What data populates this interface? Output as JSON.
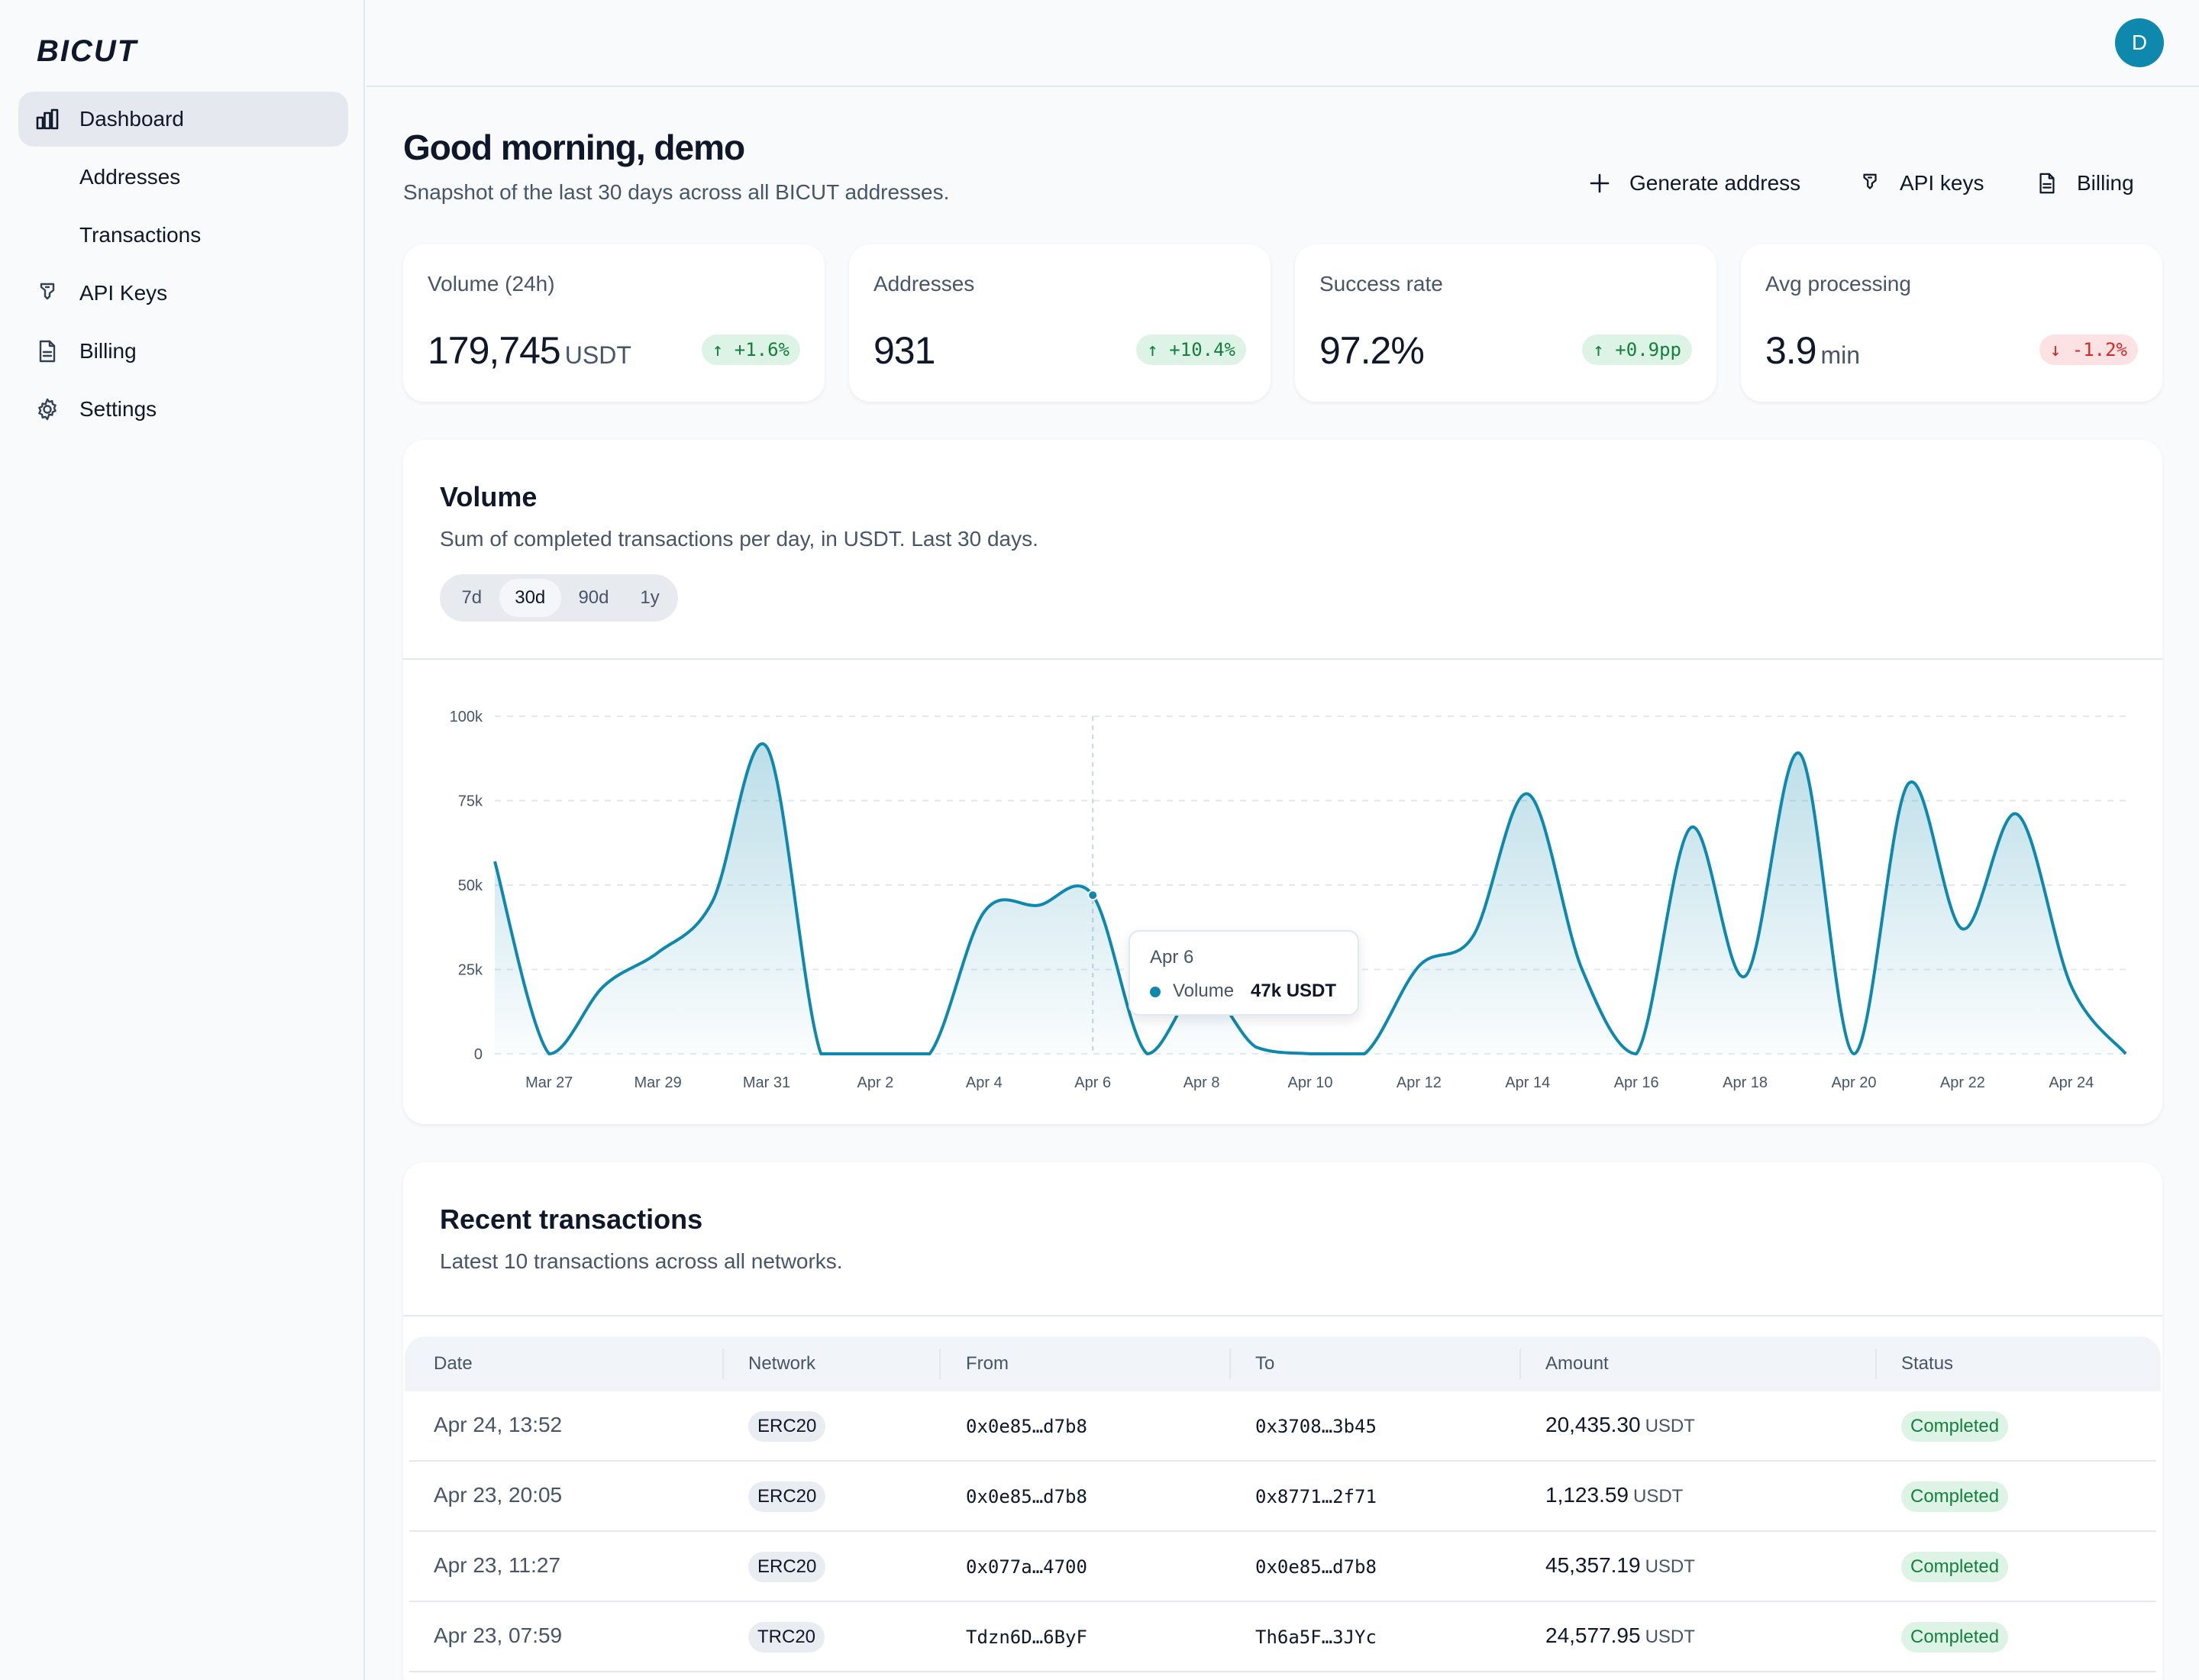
{
  "brand": {
    "logo_text": "BICUT"
  },
  "sidebar": {
    "items": [
      {
        "label": "Dashboard",
        "icon": "chart-bar-icon",
        "active": true
      },
      {
        "label": "Addresses",
        "sub": true
      },
      {
        "label": "Transactions",
        "sub": true
      },
      {
        "label": "API Keys",
        "icon": "key-icon"
      },
      {
        "label": "Billing",
        "icon": "document-icon"
      },
      {
        "label": "Settings",
        "icon": "gear-icon"
      }
    ]
  },
  "header": {
    "avatar_initial": "D"
  },
  "page": {
    "greeting": "Good morning, demo",
    "subtitle": "Snapshot of the last 30 days across all BICUT addresses."
  },
  "actions": {
    "generate": "Generate address",
    "api_keys": "API keys",
    "billing": "Billing"
  },
  "stats": [
    {
      "label": "Volume (24h)",
      "value": "179,745",
      "unit": "USDT",
      "delta": "↑ +1.6%",
      "trend": "up"
    },
    {
      "label": "Addresses",
      "value": "931",
      "unit": "",
      "delta": "↑ +10.4%",
      "trend": "up"
    },
    {
      "label": "Success rate",
      "value": "97.2%",
      "unit": "",
      "delta": "↑ +0.9pp",
      "trend": "up"
    },
    {
      "label": "Avg processing",
      "value": "3.9",
      "unit": "min",
      "delta": "↓ -1.2%",
      "trend": "down"
    }
  ],
  "volume_card": {
    "title": "Volume",
    "description": "Sum of completed transactions per day, in USDT. Last 30 days.",
    "ranges": [
      "7d",
      "30d",
      "90d",
      "1y"
    ],
    "active_range": "30d"
  },
  "tooltip": {
    "date": "Apr 6",
    "series": "Volume",
    "value": "47k USDT"
  },
  "chart_data": {
    "type": "area",
    "title": "",
    "xlabel": "",
    "ylabel": "",
    "ylim": [
      0,
      100000
    ],
    "yticks": [
      "0",
      "25k",
      "50k",
      "75k",
      "100k"
    ],
    "xticks": [
      "Mar 27",
      "Mar 29",
      "Mar 31",
      "Apr 2",
      "Apr 4",
      "Apr 6",
      "Apr 8",
      "Apr 10",
      "Apr 12",
      "Apr 14",
      "Apr 16",
      "Apr 18",
      "Apr 20",
      "Apr 22",
      "Apr 24"
    ],
    "x": [
      "Mar 26",
      "Mar 27",
      "Mar 28",
      "Mar 29",
      "Mar 30",
      "Mar 31",
      "Apr 1",
      "Apr 2",
      "Apr 3",
      "Apr 4",
      "Apr 5",
      "Apr 6",
      "Apr 7",
      "Apr 8",
      "Apr 9",
      "Apr 10",
      "Apr 11",
      "Apr 12",
      "Apr 13",
      "Apr 14",
      "Apr 15",
      "Apr 16",
      "Apr 17",
      "Apr 18",
      "Apr 19",
      "Apr 20",
      "Apr 21",
      "Apr 22",
      "Apr 23",
      "Apr 24",
      "Apr 25"
    ],
    "series": [
      {
        "name": "Volume",
        "color": "#0e89ad",
        "values": [
          57000,
          0,
          20000,
          30000,
          45000,
          91000,
          0,
          0,
          0,
          42000,
          44000,
          47000,
          0,
          20000,
          2000,
          0,
          0,
          26000,
          35000,
          77000,
          25000,
          0,
          67000,
          23000,
          89000,
          0,
          80000,
          37000,
          71000,
          20000,
          0
        ]
      }
    ],
    "grid": true,
    "highlight": {
      "x": "Apr 6",
      "value": 47000
    }
  },
  "transactions": {
    "title": "Recent transactions",
    "description": "Latest 10 transactions across all networks.",
    "columns": [
      "Date",
      "Network",
      "From",
      "To",
      "Amount",
      "Status"
    ],
    "unit": "USDT",
    "rows": [
      {
        "date": "Apr 24, 13:52",
        "network": "ERC20",
        "from": "0x0e85…d7b8",
        "to": "0x3708…3b45",
        "amount": "20,435.30",
        "status": "Completed"
      },
      {
        "date": "Apr 23, 20:05",
        "network": "ERC20",
        "from": "0x0e85…d7b8",
        "to": "0x8771…2f71",
        "amount": "1,123.59",
        "status": "Completed"
      },
      {
        "date": "Apr 23, 11:27",
        "network": "ERC20",
        "from": "0x077a…4700",
        "to": "0x0e85…d7b8",
        "amount": "45,357.19",
        "status": "Completed"
      },
      {
        "date": "Apr 23, 07:59",
        "network": "TRC20",
        "from": "Tdzn6D…6ByF",
        "to": "Th6a5F…3JYc",
        "amount": "24,577.95",
        "status": "Completed"
      }
    ]
  }
}
